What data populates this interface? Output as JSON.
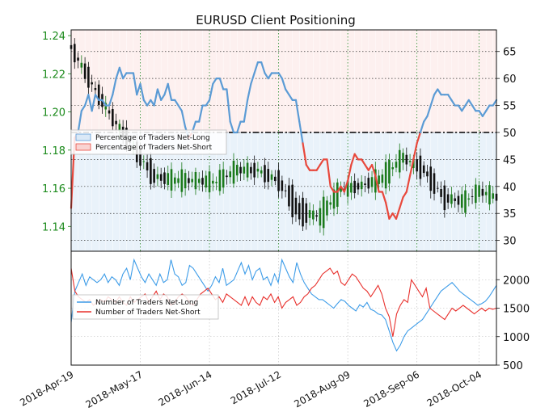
{
  "chart_data": [
    {
      "type": "line",
      "title": "EURUSD Client Positioning",
      "left_axis_ticks": [
        "1.14",
        "1.16",
        "1.18",
        "1.20",
        "1.22",
        "1.24"
      ],
      "left_axis_values": [
        1.14,
        1.16,
        1.18,
        1.2,
        1.22,
        1.24
      ],
      "ylim_left": [
        1.127,
        1.243
      ],
      "right_axis_ticks": [
        "30",
        "35",
        "40",
        "45",
        "50",
        "55",
        "60",
        "65"
      ],
      "right_axis_values": [
        30,
        35,
        40,
        45,
        50,
        55,
        60,
        65
      ],
      "ylim_right": [
        28,
        69
      ],
      "x_ticks": [
        "2018-Apr-19",
        "2018-May-17",
        "2018-Jun-14",
        "2018-Jul-12",
        "2018-Aug-09",
        "2018-Sep-06",
        "2018-Oct-04"
      ],
      "reference_line": 50,
      "grid": true,
      "legend_position": "middle-left",
      "series": [
        {
          "name": "Percentage of Traders Net-Long",
          "color": "#5b9bd5",
          "fill": "#dbe9f7"
        },
        {
          "name": "Percentage of Traders Net-Short",
          "color": "#e8483c",
          "fill": "#f9d4d2"
        }
      ],
      "net_long_pct": [
        36,
        49,
        50,
        54,
        55,
        57,
        54,
        57,
        56,
        56,
        55,
        55,
        57,
        60,
        62,
        60,
        61,
        61,
        61,
        57,
        59,
        56,
        55,
        56,
        55,
        58,
        56,
        57,
        59,
        56,
        56,
        55,
        54,
        51,
        49,
        50,
        52,
        52,
        55,
        55,
        56,
        59,
        60,
        60,
        58,
        58,
        52,
        50,
        50,
        52,
        52,
        56,
        59,
        61,
        63,
        63,
        61,
        60,
        61,
        61,
        61,
        60,
        58,
        57,
        56,
        56,
        52,
        48,
        44,
        43,
        43,
        43,
        44,
        45,
        45,
        40,
        39,
        39,
        40,
        39,
        41,
        44,
        46,
        45,
        45,
        44,
        43,
        44,
        42,
        39,
        39,
        37,
        34,
        35,
        34,
        36,
        38,
        39,
        42,
        45,
        48,
        50,
        52,
        53,
        55,
        57,
        58,
        57,
        57,
        57,
        56,
        55,
        55,
        54,
        55,
        56,
        55,
        54,
        54,
        53,
        54,
        55,
        55,
        56
      ],
      "ohlc": [
        {
          "x": 0,
          "o": 1.235,
          "h": 1.238,
          "l": 1.23,
          "c": 1.233
        },
        {
          "x": 6,
          "o": 1.218,
          "h": 1.224,
          "l": 1.21,
          "c": 1.212
        },
        {
          "x": 12,
          "o": 1.198,
          "h": 1.205,
          "l": 1.192,
          "c": 1.196
        },
        {
          "x": 18,
          "o": 1.184,
          "h": 1.19,
          "l": 1.176,
          "c": 1.179
        },
        {
          "x": 24,
          "o": 1.17,
          "h": 1.178,
          "l": 1.16,
          "c": 1.163
        },
        {
          "x": 30,
          "o": 1.16,
          "h": 1.172,
          "l": 1.158,
          "c": 1.168
        },
        {
          "x": 36,
          "o": 1.163,
          "h": 1.17,
          "l": 1.158,
          "c": 1.165
        },
        {
          "x": 42,
          "o": 1.16,
          "h": 1.168,
          "l": 1.154,
          "c": 1.166
        },
        {
          "x": 48,
          "o": 1.167,
          "h": 1.176,
          "l": 1.164,
          "c": 1.172
        },
        {
          "x": 54,
          "o": 1.171,
          "h": 1.178,
          "l": 1.166,
          "c": 1.168
        },
        {
          "x": 60,
          "o": 1.166,
          "h": 1.17,
          "l": 1.16,
          "c": 1.162
        },
        {
          "x": 66,
          "o": 1.155,
          "h": 1.16,
          "l": 1.138,
          "c": 1.141
        },
        {
          "x": 72,
          "o": 1.14,
          "h": 1.152,
          "l": 1.133,
          "c": 1.15
        },
        {
          "x": 78,
          "o": 1.156,
          "h": 1.165,
          "l": 1.152,
          "c": 1.162
        },
        {
          "x": 84,
          "o": 1.163,
          "h": 1.17,
          "l": 1.158,
          "c": 1.16
        },
        {
          "x": 90,
          "o": 1.16,
          "h": 1.172,
          "l": 1.157,
          "c": 1.17
        },
        {
          "x": 96,
          "o": 1.174,
          "h": 1.181,
          "l": 1.168,
          "c": 1.178
        },
        {
          "x": 102,
          "o": 1.174,
          "h": 1.18,
          "l": 1.164,
          "c": 1.166
        },
        {
          "x": 108,
          "o": 1.158,
          "h": 1.162,
          "l": 1.146,
          "c": 1.152
        },
        {
          "x": 114,
          "o": 1.15,
          "h": 1.158,
          "l": 1.145,
          "c": 1.156
        },
        {
          "x": 118,
          "o": 1.157,
          "h": 1.162,
          "l": 1.154,
          "c": 1.16
        }
      ]
    },
    {
      "type": "line",
      "right_axis_ticks": [
        "500",
        "1000",
        "1500",
        "2000"
      ],
      "right_axis_values": [
        500,
        1000,
        1500,
        2000
      ],
      "ylim": [
        500,
        2500
      ],
      "legend_position": "middle-left",
      "series": [
        {
          "name": "Number of Traders Net-Long",
          "color": "#3d9ce8",
          "values": [
            1250,
            1800,
            1950,
            2100,
            1900,
            2050,
            2000,
            1950,
            2000,
            2100,
            1950,
            2050,
            2000,
            1900,
            2100,
            2200,
            2000,
            2350,
            2200,
            2050,
            1950,
            2100,
            2000,
            1900,
            2100,
            1950,
            2000,
            2350,
            2100,
            2050,
            1900,
            1950,
            2250,
            2200,
            2100,
            2000,
            1900,
            1800,
            1900,
            2050,
            1950,
            2200,
            1900,
            1950,
            2000,
            2150,
            2300,
            2100,
            2250,
            2000,
            2150,
            2200,
            2000,
            2050,
            1900,
            2100,
            1950,
            2350,
            2200,
            2050,
            1950,
            2300,
            2100,
            1950,
            1850,
            1750,
            1700,
            1650,
            1650,
            1600,
            1550,
            1500,
            1580,
            1650,
            1620,
            1550,
            1500,
            1450,
            1560,
            1520,
            1600,
            1480,
            1450,
            1400,
            1380,
            1300,
            1100,
            900,
            750,
            850,
            1000,
            1100,
            1150,
            1200,
            1250,
            1300,
            1400,
            1500,
            1600,
            1700,
            1800,
            1850,
            1900,
            1950,
            1880,
            1800,
            1750,
            1700,
            1650,
            1600,
            1550,
            1580,
            1620,
            1700,
            1800,
            1900
          ]
        },
        {
          "name": "Number of Traders Net-Short",
          "color": "#e8302c",
          "values": [
            2200,
            1800,
            1700,
            1650,
            1600,
            1650,
            1550,
            1600,
            1650,
            1600,
            1700,
            1650,
            1600,
            1700,
            1600,
            1550,
            1700,
            1600,
            1650,
            1700,
            1750,
            1600,
            1700,
            1800,
            1650,
            1750,
            1700,
            1550,
            1600,
            1700,
            1750,
            1700,
            1600,
            1550,
            1650,
            1750,
            1800,
            1850,
            1750,
            1650,
            1700,
            1600,
            1750,
            1700,
            1650,
            1600,
            1550,
            1700,
            1550,
            1700,
            1600,
            1550,
            1700,
            1650,
            1750,
            1600,
            1700,
            1500,
            1600,
            1650,
            1700,
            1550,
            1600,
            1700,
            1750,
            1850,
            1900,
            2000,
            2100,
            2150,
            2200,
            2100,
            2150,
            1950,
            1900,
            2000,
            2100,
            2050,
            1950,
            1850,
            1800,
            1700,
            1800,
            1900,
            1750,
            1500,
            1350,
            1000,
            1400,
            1550,
            1650,
            1600,
            2000,
            1900,
            1800,
            1700,
            1850,
            1500,
            1450,
            1400,
            1350,
            1300,
            1400,
            1500,
            1450,
            1500,
            1550,
            1500,
            1450,
            1400,
            1450,
            1500,
            1450,
            1500,
            1480,
            1500
          ]
        }
      ]
    }
  ]
}
